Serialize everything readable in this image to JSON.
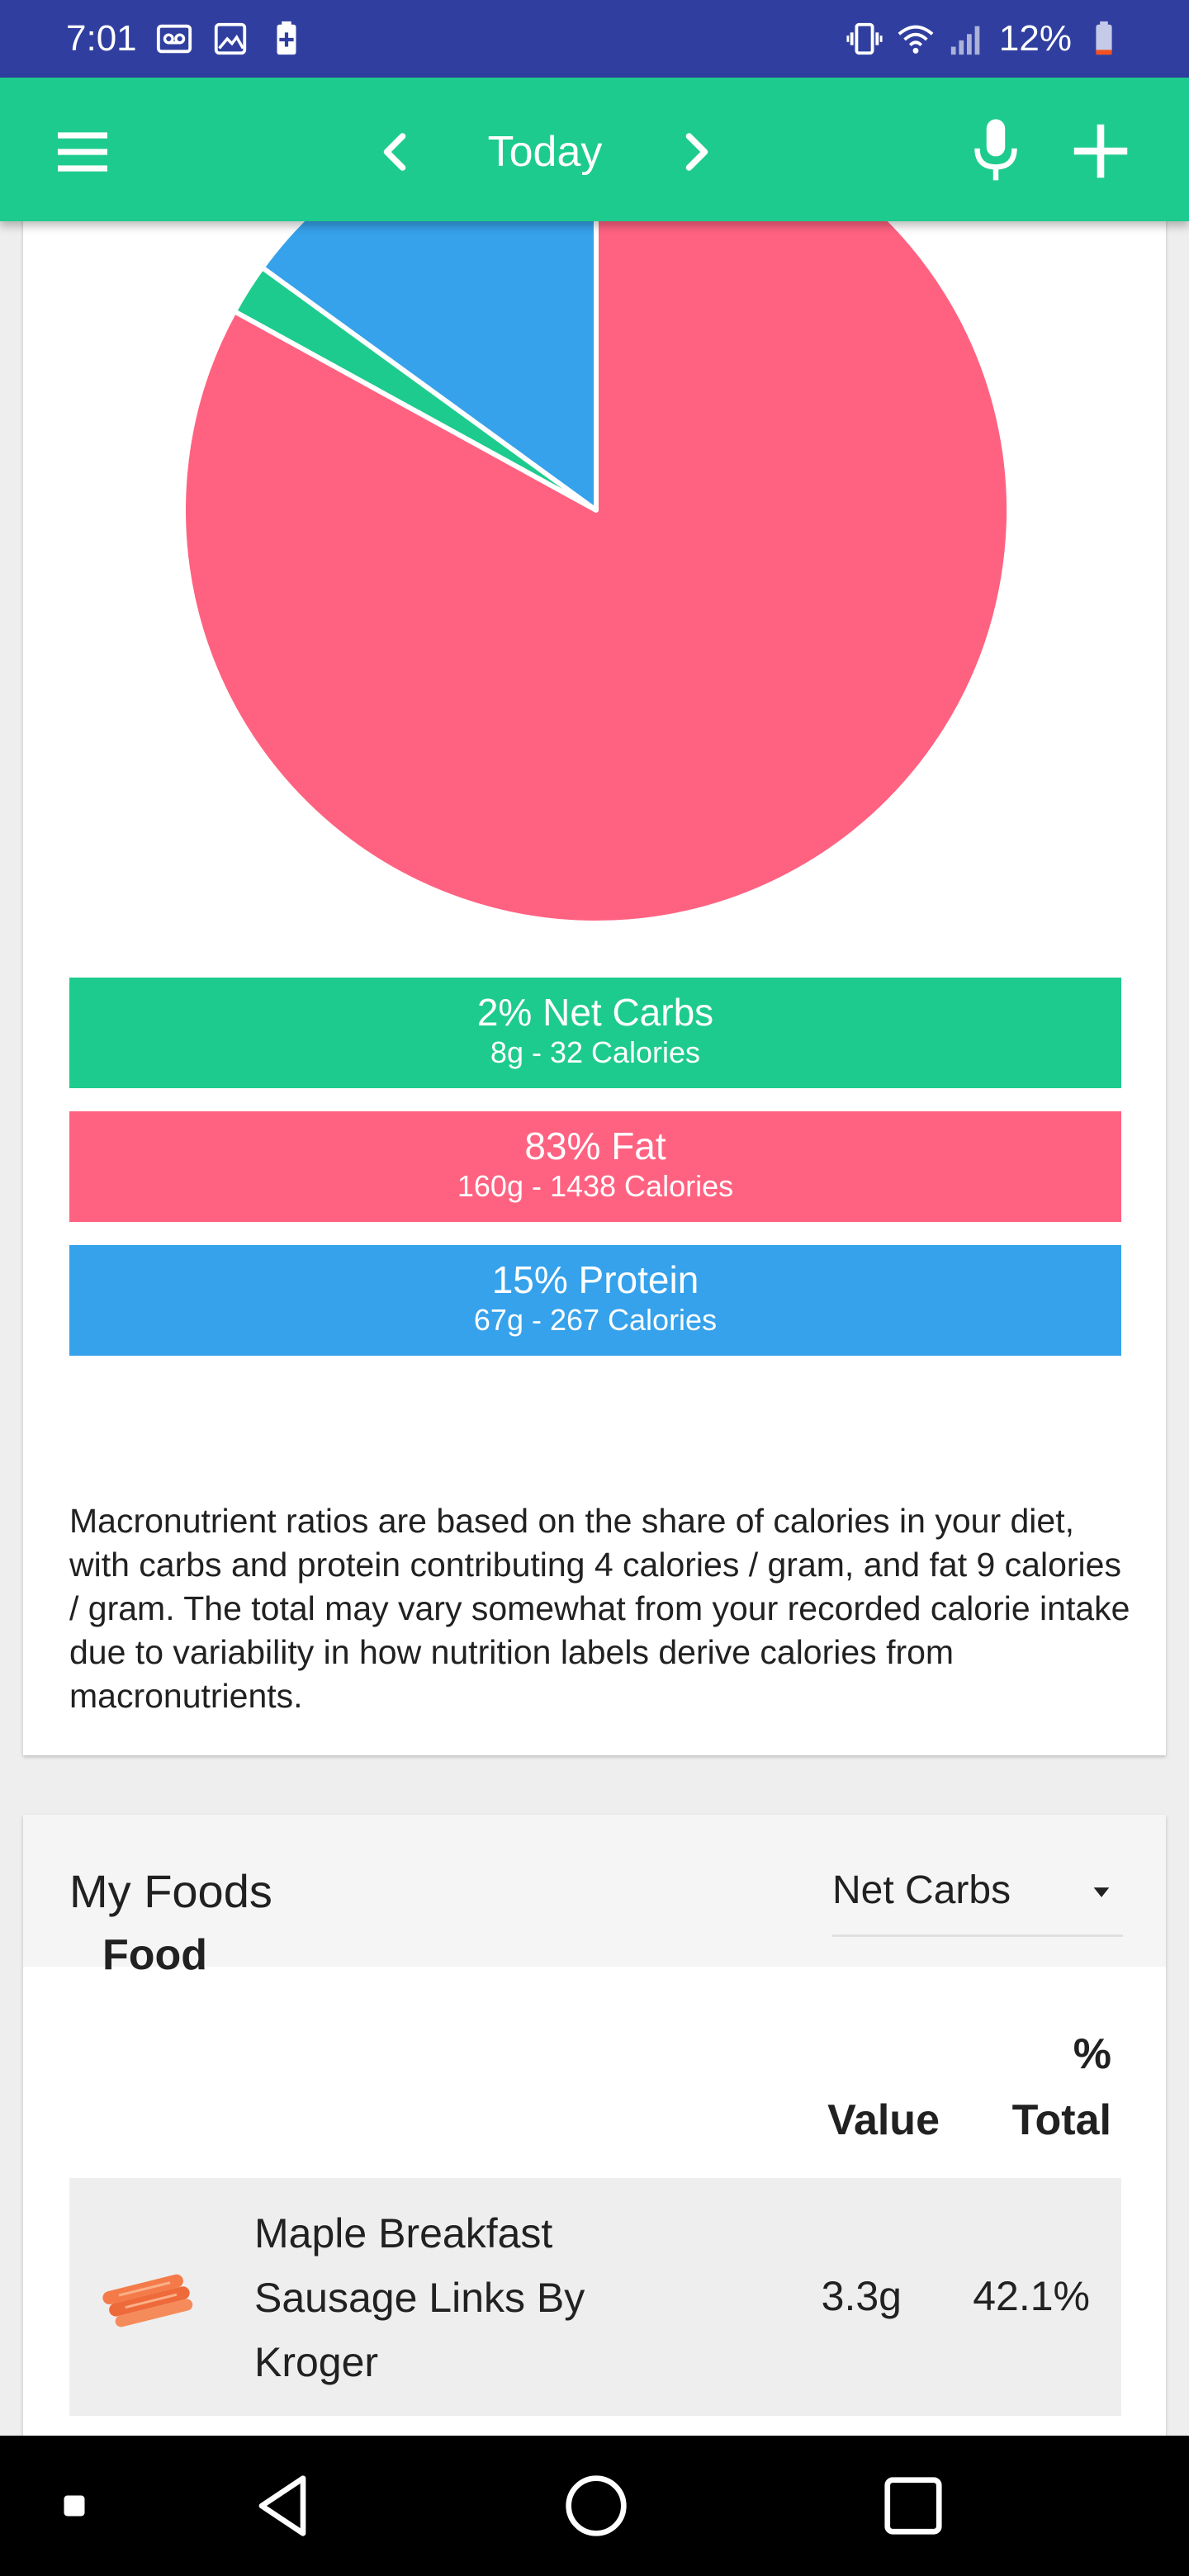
{
  "status_bar": {
    "time": "7:01",
    "left_icons": [
      "voicemail-icon",
      "image-icon",
      "battery-saver-icon"
    ],
    "right_icons": [
      "vibrate-icon",
      "wifi-icon",
      "signal-icon",
      "battery-icon"
    ],
    "battery": "12%"
  },
  "app_bar": {
    "menu_icon": "hamburger-menu-icon",
    "prev_icon": "chevron-left-icon",
    "title": "Today",
    "next_icon": "chevron-right-icon",
    "mic_icon": "microphone-icon",
    "add_icon": "plus-icon"
  },
  "chart_data": {
    "type": "pie",
    "slices": [
      {
        "label": "Net Carbs",
        "value": 2,
        "color": "#1ecb8e"
      },
      {
        "label": "Fat",
        "value": 83,
        "color": "#ff6281"
      },
      {
        "label": "Protein",
        "value": 15,
        "color": "#36a2eb"
      }
    ]
  },
  "macros": [
    {
      "name": "carbs",
      "title": "2% Net Carbs",
      "detail": "8g - 32 Calories",
      "color": "#1ecb8e"
    },
    {
      "name": "fat",
      "title": "83% Fat",
      "detail": "160g - 1438 Calories",
      "color": "#ff6281"
    },
    {
      "name": "protein",
      "title": "15% Protein",
      "detail": "67g - 267 Calories",
      "color": "#36a2eb"
    }
  ],
  "note": "Macronutrient ratios are based on the share of calories in your diet, with carbs and protein contributing 4 calories / gram, and fat 9 calories / gram. The total may vary somewhat from your recorded calorie intake due to variability in how nutrition labels derive calories from macronutrients.",
  "my_foods": {
    "title": "My Foods",
    "dropdown_value": "Net Carbs",
    "columns": {
      "food": "Food",
      "value": "Value",
      "pct_top": "%",
      "pct_bottom": "Total"
    },
    "rows": [
      {
        "icon": "sausage-icon",
        "name": "Maple Breakfast Sausage Links By Kroger",
        "value": "3.3g",
        "pct": "42.1%"
      }
    ]
  },
  "nav_bar": {
    "icons": [
      "recent-square-small-icon",
      "back-triangle-icon",
      "home-circle-icon",
      "overview-square-icon"
    ]
  }
}
